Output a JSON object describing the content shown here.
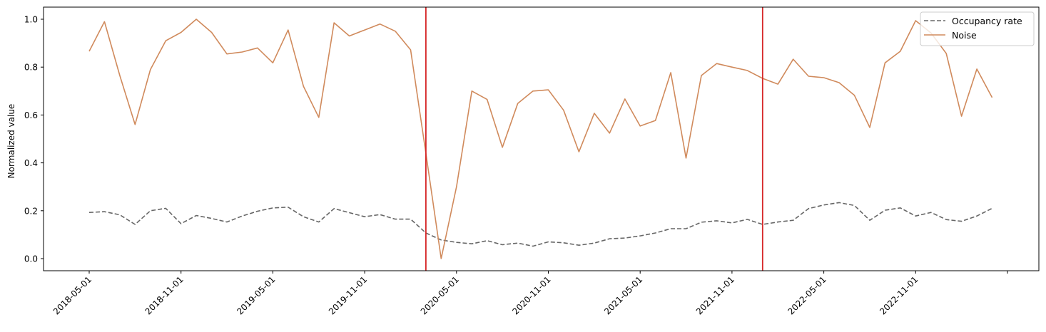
{
  "chart_data": {
    "type": "line",
    "title": "",
    "xlabel": "",
    "ylabel": "Normalized value",
    "ylim": [
      -0.05,
      1.05
    ],
    "yticks": [
      0.0,
      0.2,
      0.4,
      0.6,
      0.8,
      1.0
    ],
    "ytick_labels": [
      "0.0",
      "0.2",
      "0.4",
      "0.6",
      "0.8",
      "1.0"
    ],
    "xtick_labels": [
      "2018-05-01",
      "2018-11-01",
      "2019-05-01",
      "2019-11-01",
      "2020-05-01",
      "2020-11-01",
      "2021-05-01",
      "2021-11-01",
      "2022-05-01",
      "2022-11-01",
      ""
    ],
    "grid": false,
    "legend_position": "upper right",
    "x": [
      "2018-05-01",
      "2018-06-01",
      "2018-07-01",
      "2018-08-01",
      "2018-09-01",
      "2018-10-01",
      "2018-11-01",
      "2018-12-01",
      "2019-01-01",
      "2019-02-01",
      "2019-03-01",
      "2019-04-01",
      "2019-05-01",
      "2019-06-01",
      "2019-07-01",
      "2019-08-01",
      "2019-09-01",
      "2019-10-01",
      "2019-11-01",
      "2019-12-01",
      "2020-01-01",
      "2020-02-01",
      "2020-03-01",
      "2020-04-01",
      "2020-05-01",
      "2020-06-01",
      "2020-07-01",
      "2020-08-01",
      "2020-09-01",
      "2020-10-01",
      "2020-11-01",
      "2020-12-01",
      "2021-01-01",
      "2021-02-01",
      "2021-03-01",
      "2021-04-01",
      "2021-05-01",
      "2021-06-01",
      "2021-07-01",
      "2021-08-01",
      "2021-09-01",
      "2021-10-01",
      "2021-11-01",
      "2021-12-01",
      "2022-01-01",
      "2022-02-01",
      "2022-03-01",
      "2022-04-01",
      "2022-05-01",
      "2022-06-01",
      "2022-07-01",
      "2022-08-01",
      "2022-09-01",
      "2022-10-01",
      "2022-11-01",
      "2022-12-01",
      "2023-01-01",
      "2023-02-01",
      "2023-03-01",
      "2023-04-01"
    ],
    "series": [
      {
        "name": "Occupancy rate",
        "style": "dashed",
        "color": "#666666",
        "values": [
          0.193,
          0.196,
          0.183,
          0.143,
          0.2,
          0.21,
          0.146,
          0.18,
          0.168,
          0.153,
          0.178,
          0.198,
          0.212,
          0.215,
          0.175,
          0.153,
          0.209,
          0.192,
          0.175,
          0.184,
          0.165,
          0.165,
          0.107,
          0.078,
          0.068,
          0.062,
          0.075,
          0.058,
          0.065,
          0.052,
          0.07,
          0.066,
          0.056,
          0.065,
          0.083,
          0.086,
          0.095,
          0.107,
          0.125,
          0.125,
          0.152,
          0.158,
          0.149,
          0.164,
          0.143,
          0.153,
          0.16,
          0.209,
          0.224,
          0.234,
          0.222,
          0.16,
          0.202,
          0.212,
          0.178,
          0.193,
          0.163,
          0.156,
          0.178,
          0.21
        ]
      },
      {
        "name": "Noise",
        "style": "solid",
        "color": "#D08A5C",
        "values": [
          0.866,
          0.99,
          0.765,
          0.56,
          0.79,
          0.91,
          0.945,
          1.0,
          0.945,
          0.855,
          0.863,
          0.88,
          0.818,
          0.955,
          0.72,
          0.59,
          0.985,
          0.93,
          0.955,
          0.98,
          0.95,
          0.872,
          0.44,
          0.0,
          0.3,
          0.7,
          0.665,
          0.465,
          0.648,
          0.7,
          0.705,
          0.62,
          0.446,
          0.607,
          0.524,
          0.667,
          0.554,
          0.577,
          0.777,
          0.42,
          0.765,
          0.815,
          0.8,
          0.786,
          0.753,
          0.729,
          0.833,
          0.762,
          0.756,
          0.735,
          0.682,
          0.548,
          0.818,
          0.866,
          0.994,
          0.943,
          0.857,
          0.595,
          0.792,
          0.673
        ]
      }
    ],
    "vlines": [
      {
        "x": "2020-03-01",
        "color": "#D62728"
      },
      {
        "x": "2022-01-01",
        "color": "#D62728"
      }
    ]
  },
  "legend": {
    "items": [
      {
        "label": "Occupancy rate",
        "style": "dashed",
        "color": "#666666"
      },
      {
        "label": "Noise",
        "style": "solid",
        "color": "#D08A5C"
      }
    ]
  }
}
